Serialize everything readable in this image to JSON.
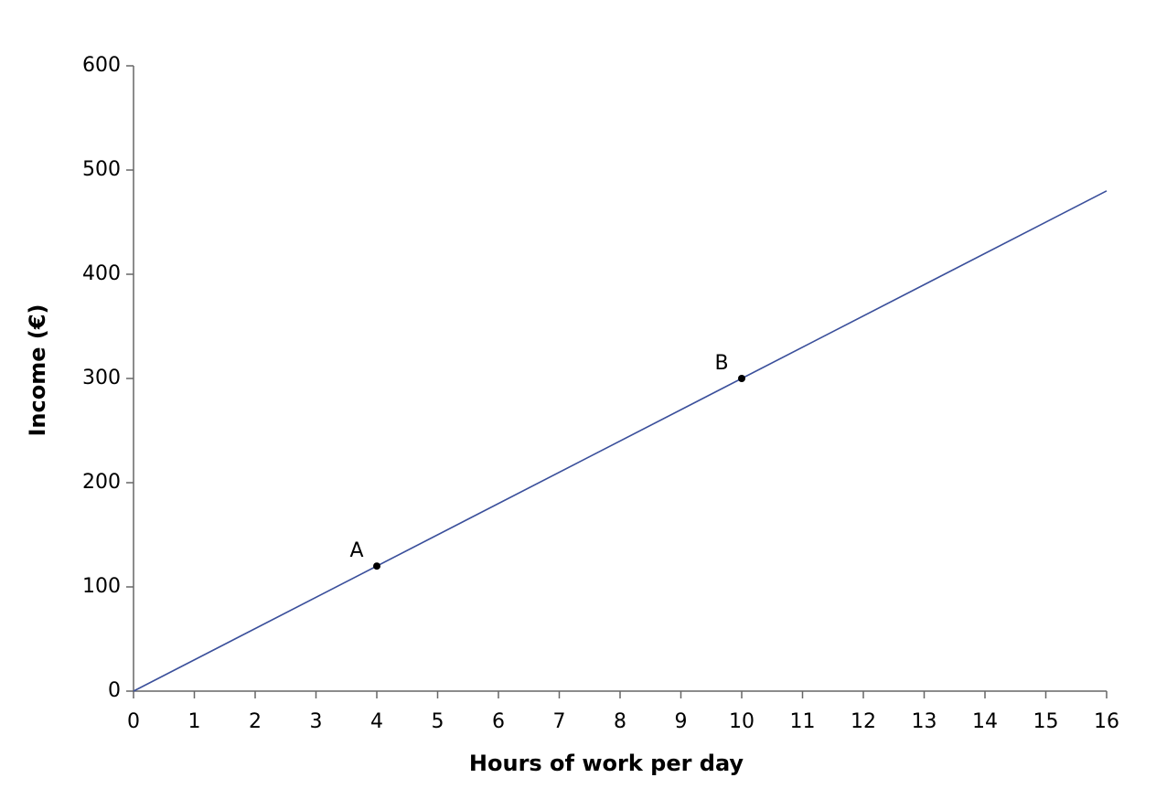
{
  "chart_data": {
    "type": "line",
    "x_label": "Hours of work per day",
    "y_label": "Income (€)",
    "x": [
      0,
      16
    ],
    "values": [
      0,
      480
    ],
    "color": "#3a4f9b",
    "points": [
      {
        "label": "A",
        "x": 4,
        "y": 120
      },
      {
        "label": "B",
        "x": 10,
        "y": 300
      }
    ],
    "point_color": "#000000",
    "xlim": [
      0,
      16
    ],
    "xticks": [
      0,
      1,
      2,
      3,
      4,
      5,
      6,
      7,
      8,
      9,
      10,
      11,
      12,
      13,
      14,
      15,
      16
    ],
    "ylim": [
      0,
      600
    ],
    "yticks": [
      0,
      100,
      200,
      300,
      400,
      500,
      600
    ],
    "grid": false
  }
}
